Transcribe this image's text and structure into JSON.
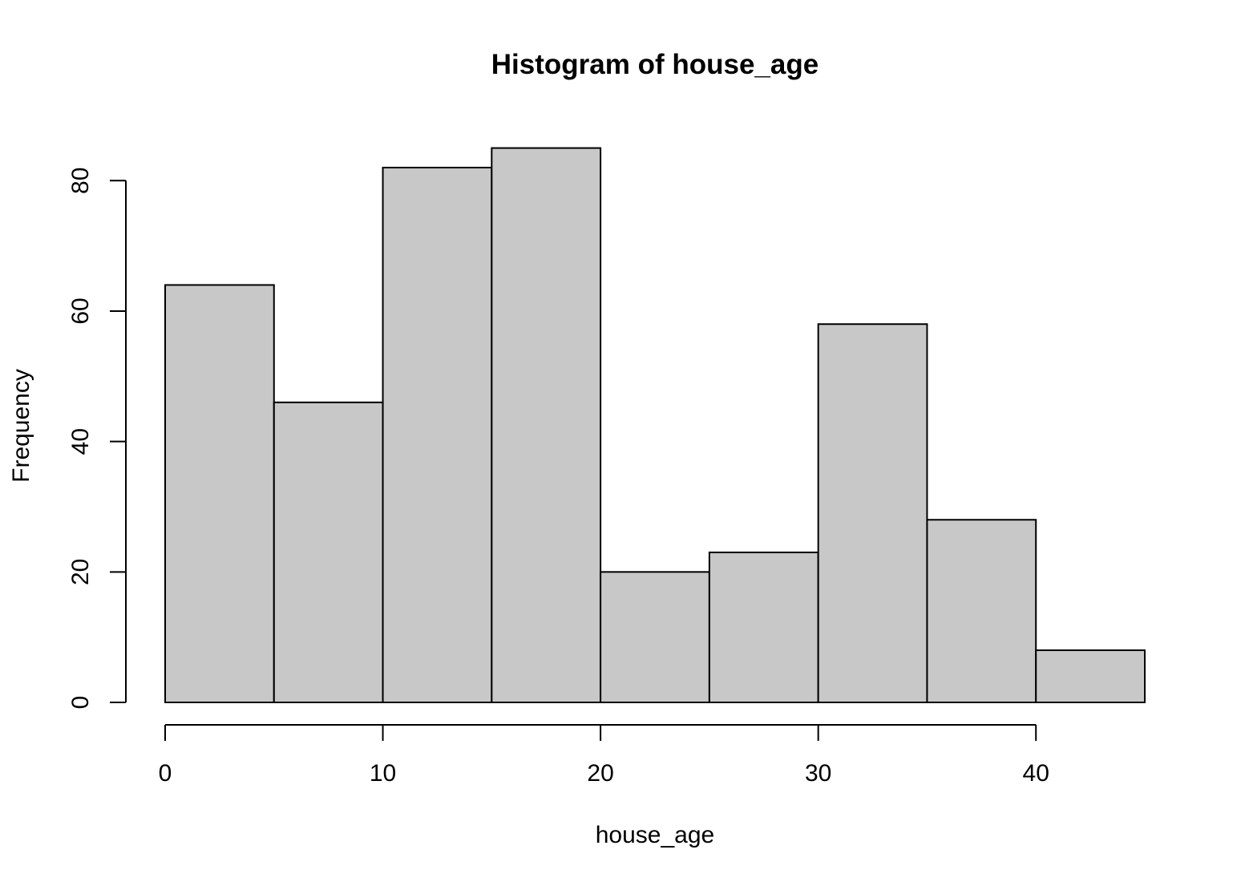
{
  "chart_data": {
    "type": "bar",
    "subtype": "histogram",
    "title": "Histogram of house_age",
    "xlabel": "house_age",
    "ylabel": "Frequency",
    "bins": [
      {
        "start": 0,
        "end": 5,
        "count": 64
      },
      {
        "start": 5,
        "end": 10,
        "count": 46
      },
      {
        "start": 10,
        "end": 15,
        "count": 82
      },
      {
        "start": 15,
        "end": 20,
        "count": 85
      },
      {
        "start": 20,
        "end": 25,
        "count": 20
      },
      {
        "start": 25,
        "end": 30,
        "count": 23
      },
      {
        "start": 30,
        "end": 35,
        "count": 58
      },
      {
        "start": 35,
        "end": 40,
        "count": 28
      },
      {
        "start": 40,
        "end": 45,
        "count": 8
      }
    ],
    "xlim": [
      0,
      45
    ],
    "ylim": [
      0,
      85
    ],
    "x_ticks": [
      0,
      10,
      20,
      30,
      40
    ],
    "y_ticks": [
      0,
      20,
      40,
      60,
      80
    ],
    "bar_fill": "#c8c8c8",
    "bar_stroke": "#000000",
    "grid": false,
    "legend": "none"
  }
}
